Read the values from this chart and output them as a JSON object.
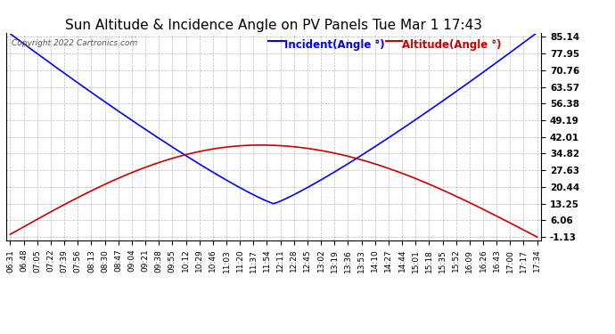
{
  "title": "Sun Altitude & Incidence Angle on PV Panels Tue Mar 1 17:43",
  "copyright": "Copyright 2022 Cartronics.com",
  "legend_incident": "Incident(Angle °)",
  "legend_altitude": "Altitude(Angle °)",
  "incident_color": "#0000ff",
  "altitude_color": "#cc0000",
  "background_color": "#ffffff",
  "grid_color": "#aaaaaa",
  "yticks": [
    85.14,
    77.95,
    70.76,
    63.57,
    56.38,
    49.19,
    42.01,
    34.82,
    27.63,
    20.44,
    13.25,
    6.06,
    -1.13
  ],
  "ymin": -1.13,
  "ymax": 85.14,
  "x_labels": [
    "06:31",
    "06:48",
    "07:05",
    "07:22",
    "07:39",
    "07:56",
    "08:13",
    "08:30",
    "08:47",
    "09:04",
    "09:21",
    "09:38",
    "09:55",
    "10:12",
    "10:29",
    "10:46",
    "11:03",
    "11:20",
    "11:37",
    "11:54",
    "12:11",
    "12:28",
    "12:45",
    "13:02",
    "13:19",
    "13:36",
    "13:53",
    "14:10",
    "14:27",
    "14:44",
    "15:01",
    "15:18",
    "15:35",
    "15:52",
    "16:09",
    "16:26",
    "16:43",
    "17:00",
    "17:17",
    "17:34"
  ],
  "title_fontsize": 11,
  "axis_fontsize": 6.5,
  "tick_fontsize": 7.5,
  "legend_fontsize": 8.5,
  "line_width": 1.2,
  "alt_peak": 38.5,
  "alt_peak_idx": 18.5,
  "inc_min": 13.25,
  "inc_max": 86.0,
  "inc_peak_idx": 19.5
}
